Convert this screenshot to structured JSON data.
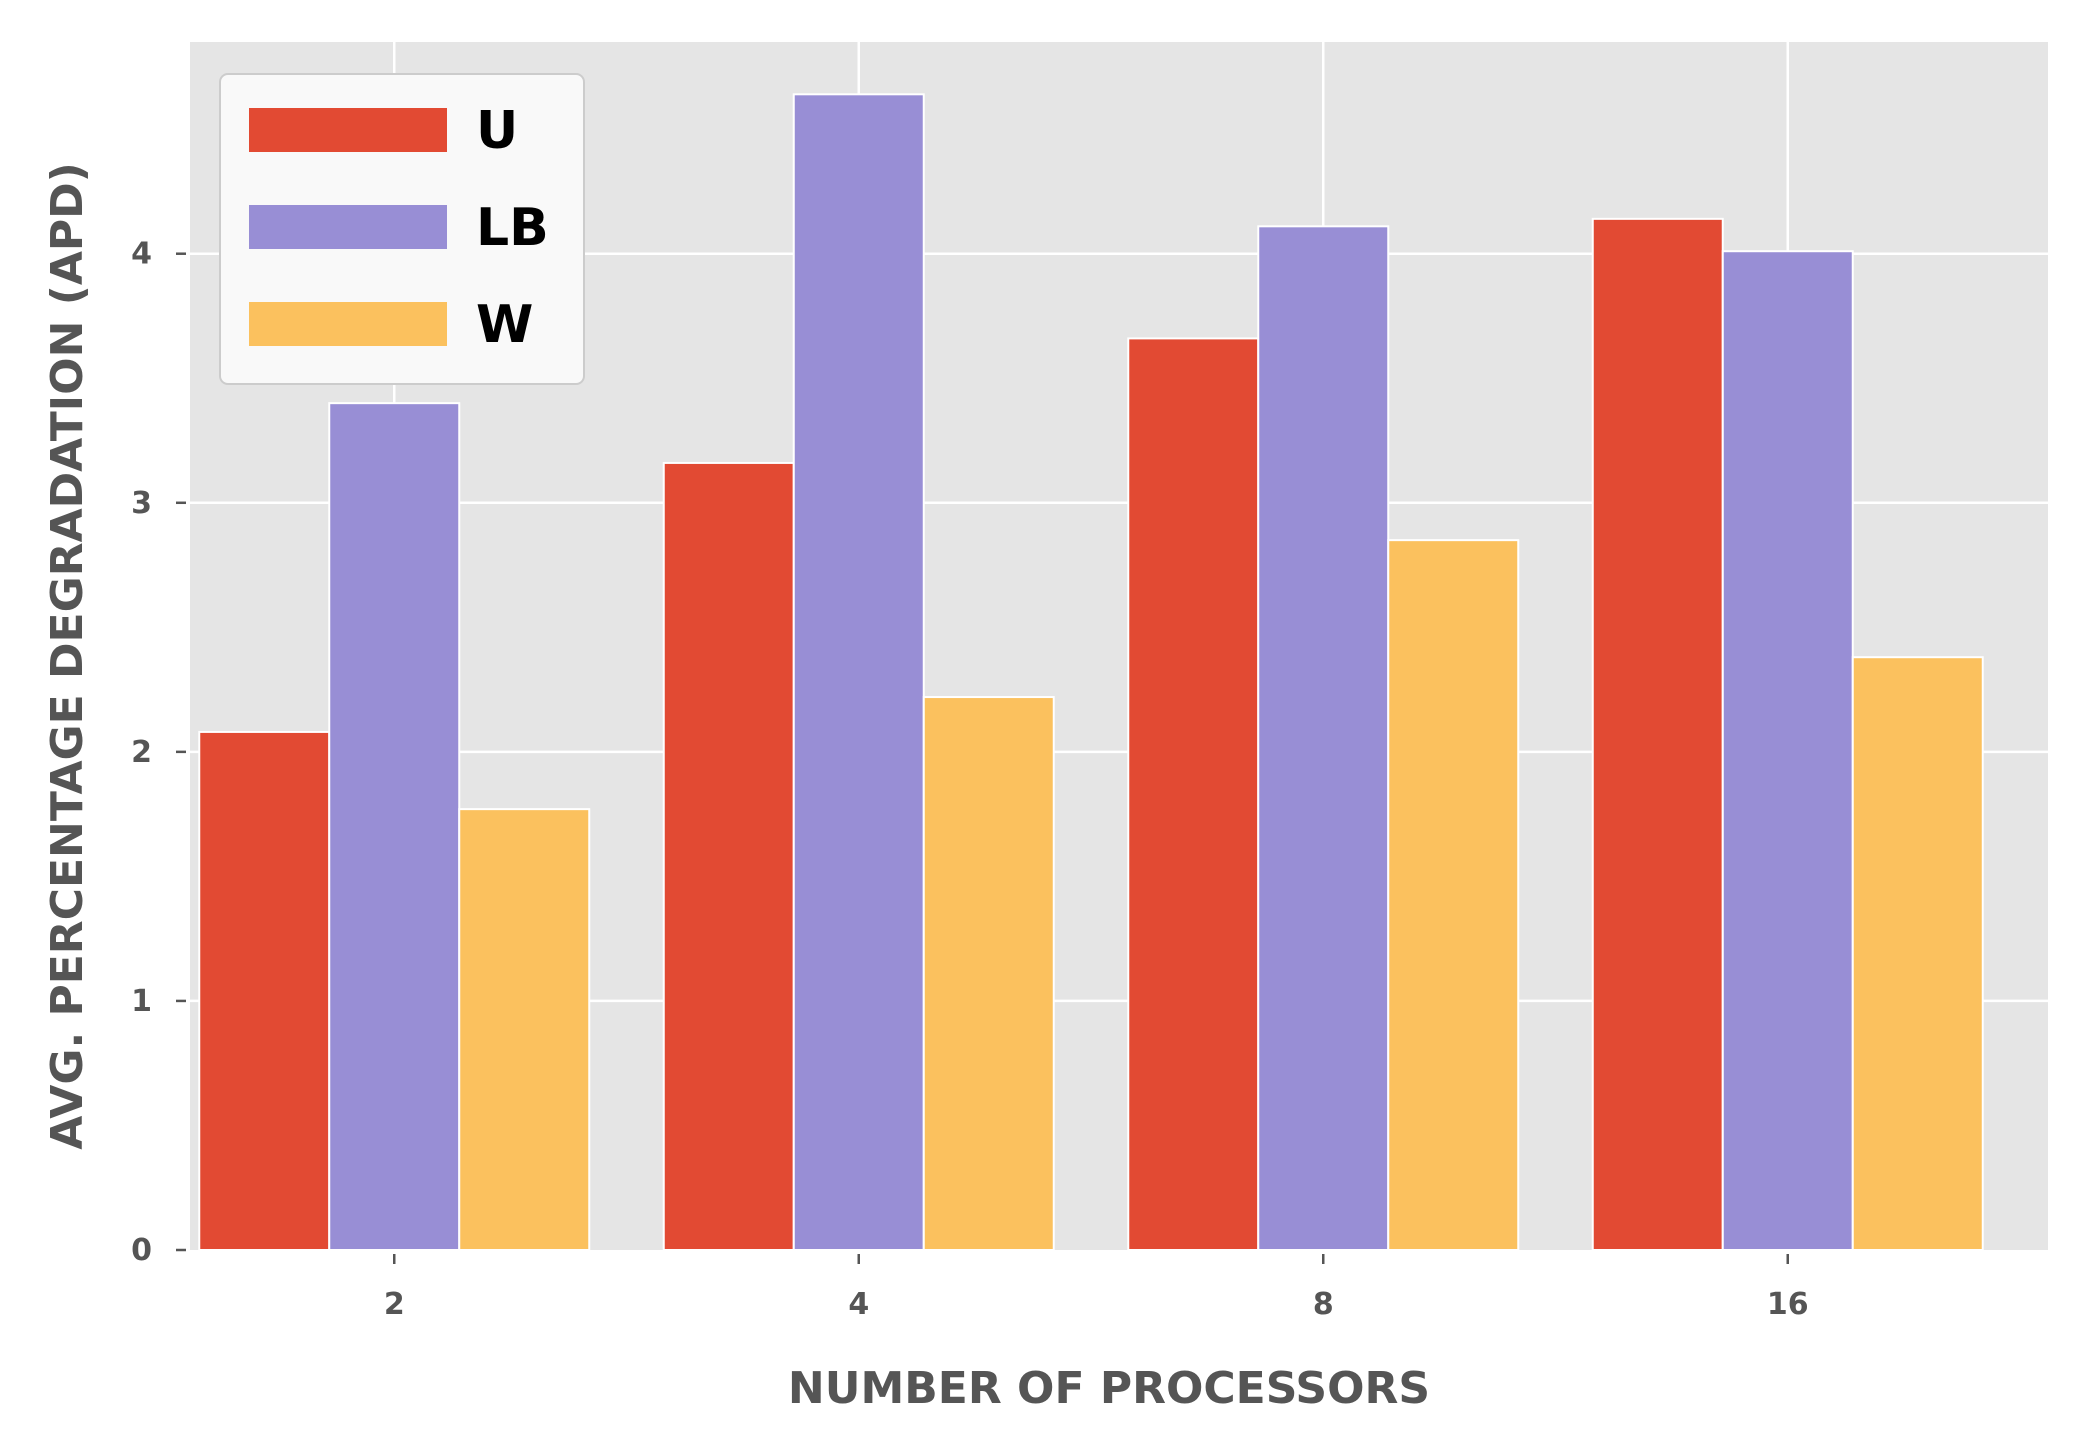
{
  "chart_data": {
    "type": "bar",
    "title": "",
    "xlabel": "NUMBER OF PROCESSORS",
    "ylabel": "AVG. PERCENTAGE DEGRADATION (APD)",
    "categories": [
      "2",
      "4",
      "8",
      "16"
    ],
    "series": [
      {
        "name": "U",
        "color": "#E24A33",
        "values": [
          2.08,
          3.16,
          3.66,
          4.14
        ]
      },
      {
        "name": "LB",
        "color": "#988ED5",
        "values": [
          3.4,
          4.64,
          4.11,
          4.01
        ]
      },
      {
        "name": "W",
        "color": "#FBC15E",
        "values": [
          1.77,
          2.22,
          2.85,
          2.38
        ]
      }
    ],
    "yticks": [
      "0",
      "1",
      "2",
      "3",
      "4"
    ],
    "ylim": [
      0,
      4.85
    ],
    "grid": true,
    "legend_position": "top-left",
    "background_color": "#E5E5E5",
    "grid_color": "#FFFFFF",
    "tick_color": "#555555"
  }
}
